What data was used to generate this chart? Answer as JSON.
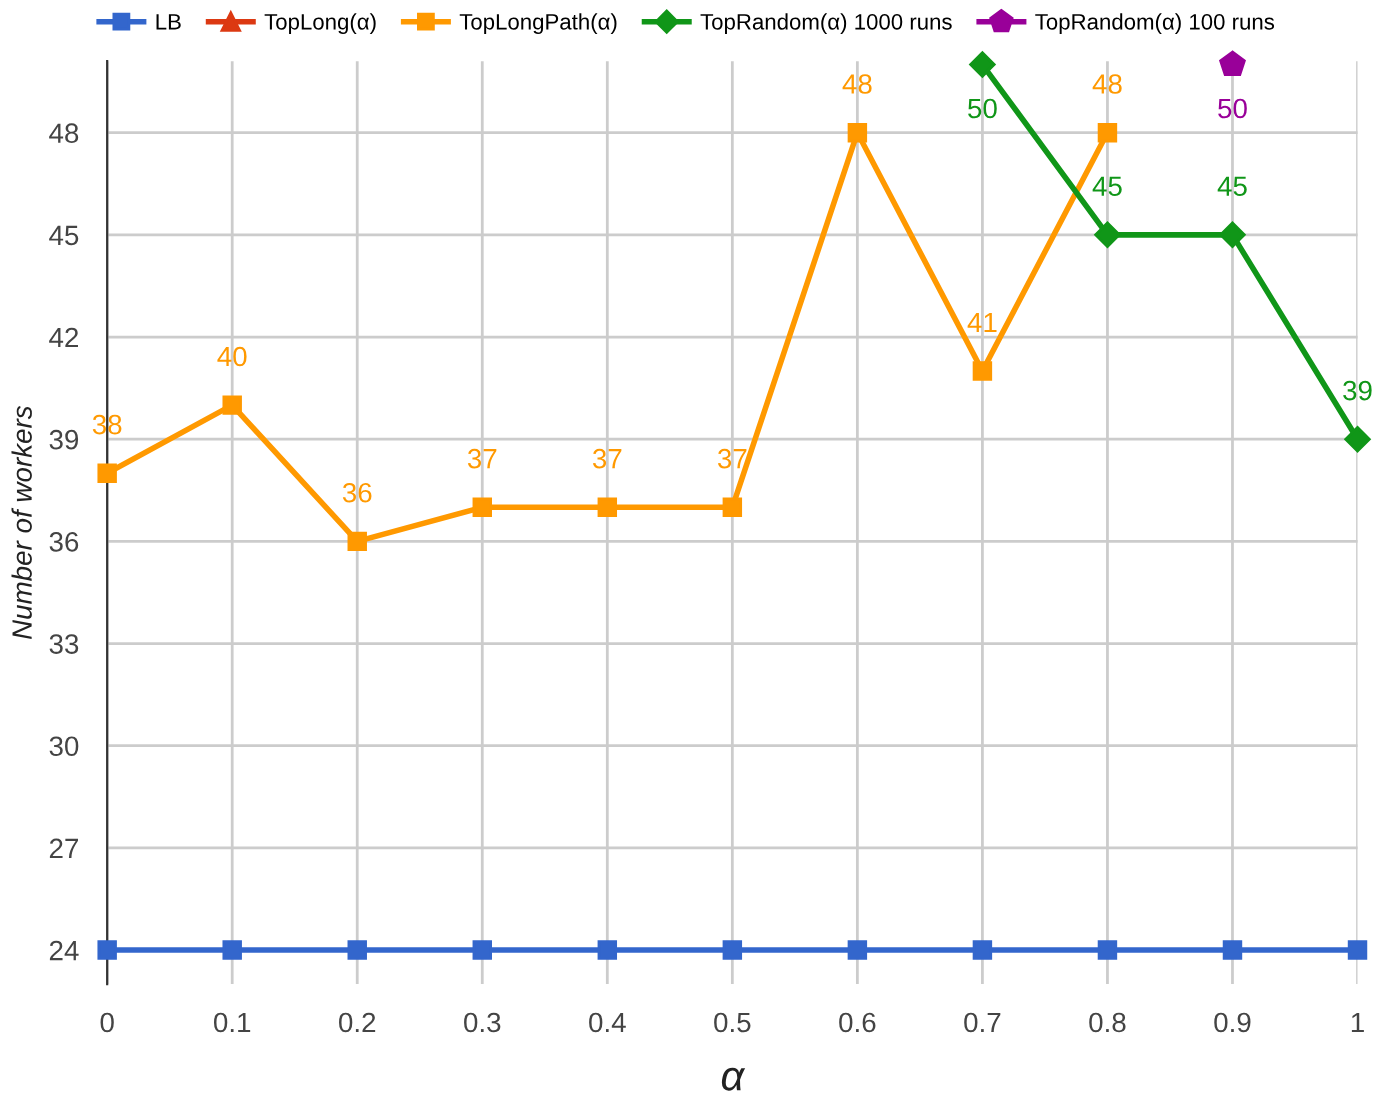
{
  "chart_data": {
    "type": "line",
    "xlabel": "α",
    "ylabel": "Number of workers",
    "x": [
      0,
      0.1,
      0.2,
      0.3,
      0.4,
      0.5,
      0.6,
      0.7,
      0.8,
      0.9,
      1
    ],
    "xlim": [
      0,
      1
    ],
    "xticks": [
      0,
      0.1,
      0.2,
      0.3,
      0.4,
      0.5,
      0.6,
      0.7,
      0.8,
      0.9,
      1
    ],
    "ylim": [
      23,
      50.1
    ],
    "yticks": [
      24,
      27,
      30,
      33,
      36,
      39,
      42,
      45,
      48
    ],
    "grid": true,
    "legend": "top",
    "series": [
      {
        "name": "LB",
        "color": "#3366cc",
        "marker": "square",
        "values": [
          24,
          24,
          24,
          24,
          24,
          24,
          24,
          24,
          24,
          24,
          24
        ]
      },
      {
        "name": "TopLong(α)",
        "color": "#dc3912",
        "marker": "triangle",
        "values": [
          null,
          null,
          null,
          null,
          null,
          null,
          null,
          null,
          null,
          null,
          null
        ]
      },
      {
        "name": "TopLongPath(α)",
        "color": "#ff9900",
        "marker": "square",
        "data_labels": true,
        "values": [
          38,
          40,
          36,
          37,
          37,
          37,
          48,
          41,
          48,
          null,
          null
        ]
      },
      {
        "name": "TopRandom(α) 1000 runs",
        "color": "#109618",
        "marker": "diamond",
        "data_labels": true,
        "values": [
          null,
          null,
          null,
          null,
          null,
          null,
          null,
          50,
          45,
          45,
          39
        ]
      },
      {
        "name": "TopRandom(α) 100 runs",
        "color": "#990099",
        "marker": "circle",
        "data_labels": true,
        "values": [
          null,
          null,
          null,
          null,
          null,
          null,
          null,
          null,
          null,
          50,
          null
        ]
      }
    ]
  }
}
